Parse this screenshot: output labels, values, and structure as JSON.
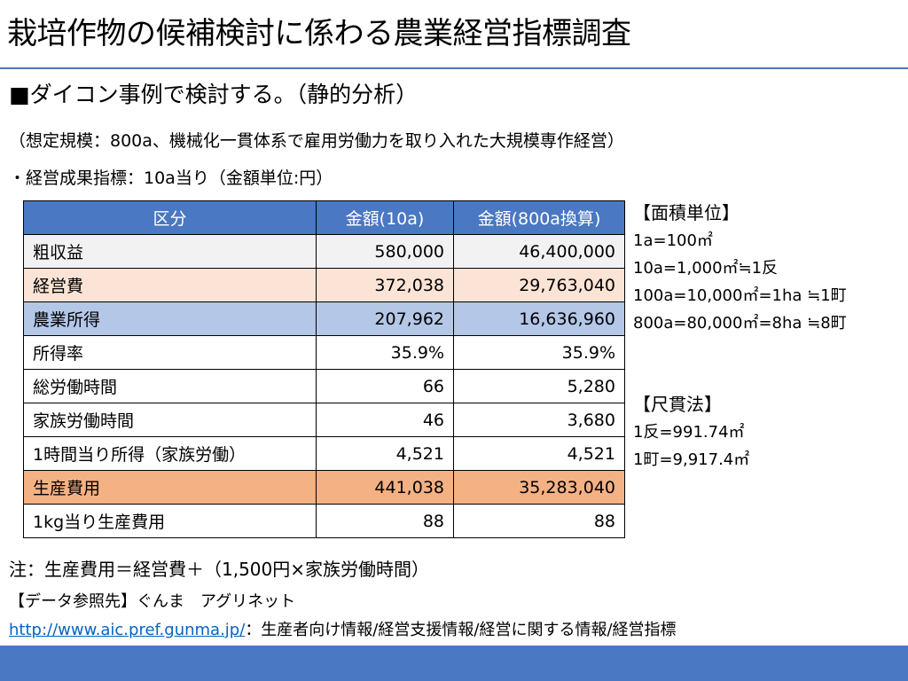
{
  "title": "栽培作物の候補検討に係わる農業経営指標調査",
  "subtitle": "■ダイコン事例で検討する。（静的分析）",
  "assumption": "（想定規模：800a、機械化一貫体系で雇用労働力を取り入れた大規模専作経営）",
  "metric_line": "・経営成果指標：10a当り（金額単位:円）",
  "table": {
    "headers": [
      "区分",
      "金額(10a)",
      "金額(800a換算)"
    ],
    "rows": [
      {
        "label": "粗収益",
        "v10a": "580,000",
        "v800a": "46,400,000"
      },
      {
        "label": "経営費",
        "v10a": "372,038",
        "v800a": "29,763,040"
      },
      {
        "label": "農業所得",
        "v10a": "207,962",
        "v800a": "16,636,960"
      },
      {
        "label": "所得率",
        "v10a": "35.9%",
        "v800a": "35.9%"
      },
      {
        "label": "総労働時間",
        "v10a": "66",
        "v800a": "5,280"
      },
      {
        "label": "家族労働時間",
        "v10a": "46",
        "v800a": "3,680"
      },
      {
        "label": "1時間当り所得（家族労働）",
        "v10a": "4,521",
        "v800a": "4,521"
      },
      {
        "label": "生産費用",
        "v10a": "441,038",
        "v800a": "35,283,040"
      },
      {
        "label": "1kg当り生産費用",
        "v10a": "88",
        "v800a": "88"
      }
    ]
  },
  "area_units": {
    "heading": "【面積単位】",
    "lines": [
      "1a=100㎡",
      "10a=1,000㎡≒1反",
      "100a=10,000㎡=1ha ≒1町",
      "800a=80,000㎡=8ha ≒8町"
    ]
  },
  "shakkan": {
    "heading": "【尺貫法】",
    "lines": [
      "1反=991.74㎡",
      "1町=9,917.4㎡"
    ]
  },
  "note": "注：生産費用＝経営費＋（1,500円×家族労働時間）",
  "source": "【データ参照先】ぐんま　アグリネット",
  "url": "http://www.aic.pref.gunma.jp/",
  "url_suffix": "：生産者向け情報/経営支援情報/経営に関する情報/経営指標"
}
